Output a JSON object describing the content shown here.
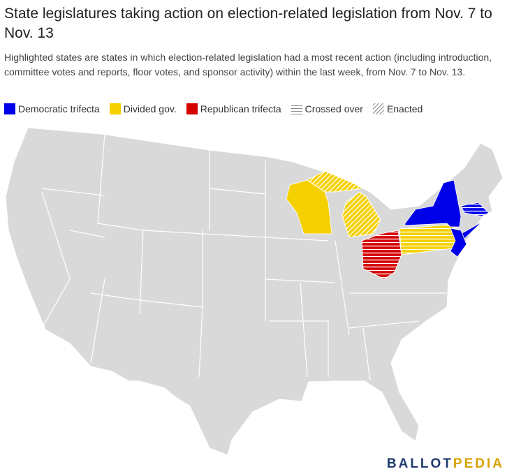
{
  "header": {
    "title": "State legislatures taking action on election-related legislation from Nov. 7 to Nov. 13",
    "subtitle": "Highlighted states are states in which election-related legislation had a most recent action (including introduction, committee votes and reports, floor votes, and sponsor activity) within the last week, from Nov. 7 to Nov. 13."
  },
  "legend": [
    {
      "label": "Democratic trifecta",
      "color": "#0000e8",
      "style": "solid"
    },
    {
      "label": "Divided gov.",
      "color": "#f5d000",
      "style": "solid"
    },
    {
      "label": "Republican trifecta",
      "color": "#d40000",
      "style": "solid"
    },
    {
      "label": "Crossed over",
      "color": "#8a8a8a",
      "style": "horizontal"
    },
    {
      "label": "Enacted",
      "color": "#8a8a8a",
      "style": "diagonal"
    }
  ],
  "logo": {
    "left": "BALLOT",
    "right": "PEDIA"
  }
}
